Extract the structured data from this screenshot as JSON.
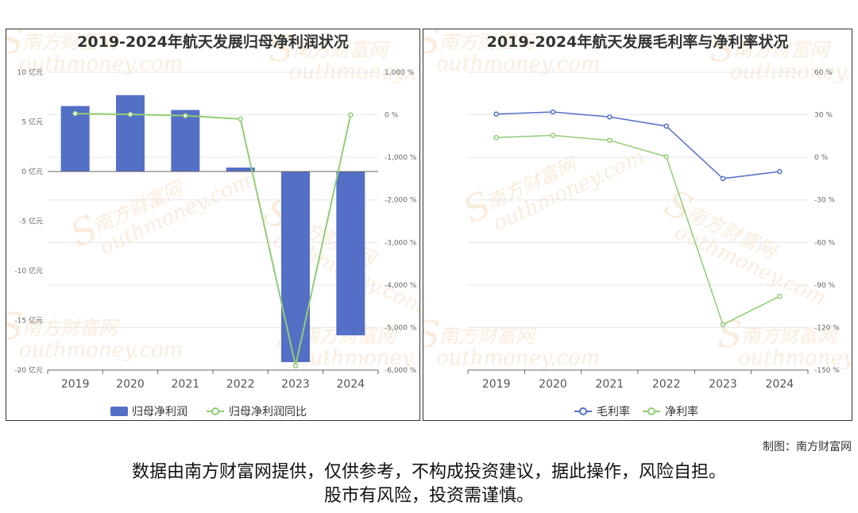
{
  "chart_data": [
    {
      "type": "bar+line",
      "title": "2019-2024年航天发展归母净利润状况",
      "categories": [
        "2019",
        "2020",
        "2021",
        "2022",
        "2023",
        "2024"
      ],
      "series": [
        {
          "name": "归母净利润",
          "type": "bar",
          "axis": "left",
          "values": [
            6.6,
            7.7,
            6.2,
            0.4,
            -19.2,
            -16.5
          ]
        },
        {
          "name": "归母净利润同比",
          "type": "line",
          "axis": "right",
          "values": [
            30,
            10,
            -20,
            -100,
            -5900,
            0
          ]
        }
      ],
      "left_axis": {
        "ticks": [
          "10 亿元",
          "5 亿元",
          "0 亿元",
          "-5 亿元",
          "-10 亿元",
          "-15 亿元",
          "-20 亿元"
        ],
        "ylim": [
          -20,
          10
        ]
      },
      "right_axis": {
        "ticks": [
          "1,000 %",
          "0 %",
          "-1,000 %",
          "-2,000 %",
          "-3,000 %",
          "-4,000 %",
          "-5,000 %",
          "-6,000 %"
        ],
        "ylim": [
          -6000,
          1000
        ]
      },
      "legend": "bottom",
      "colors": {
        "bar": "#5470c6",
        "line": "#91cc75"
      }
    },
    {
      "type": "line",
      "title": "2019-2024年航天发展毛利率与净利率状况",
      "categories": [
        "2019",
        "2020",
        "2021",
        "2022",
        "2023",
        "2024"
      ],
      "series": [
        {
          "name": "毛利率",
          "values": [
            30.5,
            32,
            28.5,
            22,
            -15,
            -10
          ],
          "color": "#5470c6"
        },
        {
          "name": "净利率",
          "values": [
            14,
            15.5,
            12,
            0.5,
            -118,
            -98
          ],
          "color": "#91cc75"
        }
      ],
      "right_axis": {
        "ticks": [
          "60 %",
          "30 %",
          "0 %",
          "-30 %",
          "-60 %",
          "-90 %",
          "-120 %",
          "-150 %"
        ],
        "ylim": [
          -150,
          60
        ]
      },
      "legend": "bottom"
    }
  ],
  "credit": "制图：南方财富网",
  "disclaimer": [
    "数据由南方财富网提供，仅供参考，不构成投资建议，据此操作，风险自担。",
    "股市有风险，投资需谨慎。"
  ],
  "watermark": {
    "cn": "南方财富网",
    "en": "outhmoney.com",
    "logo_letter": "S"
  }
}
